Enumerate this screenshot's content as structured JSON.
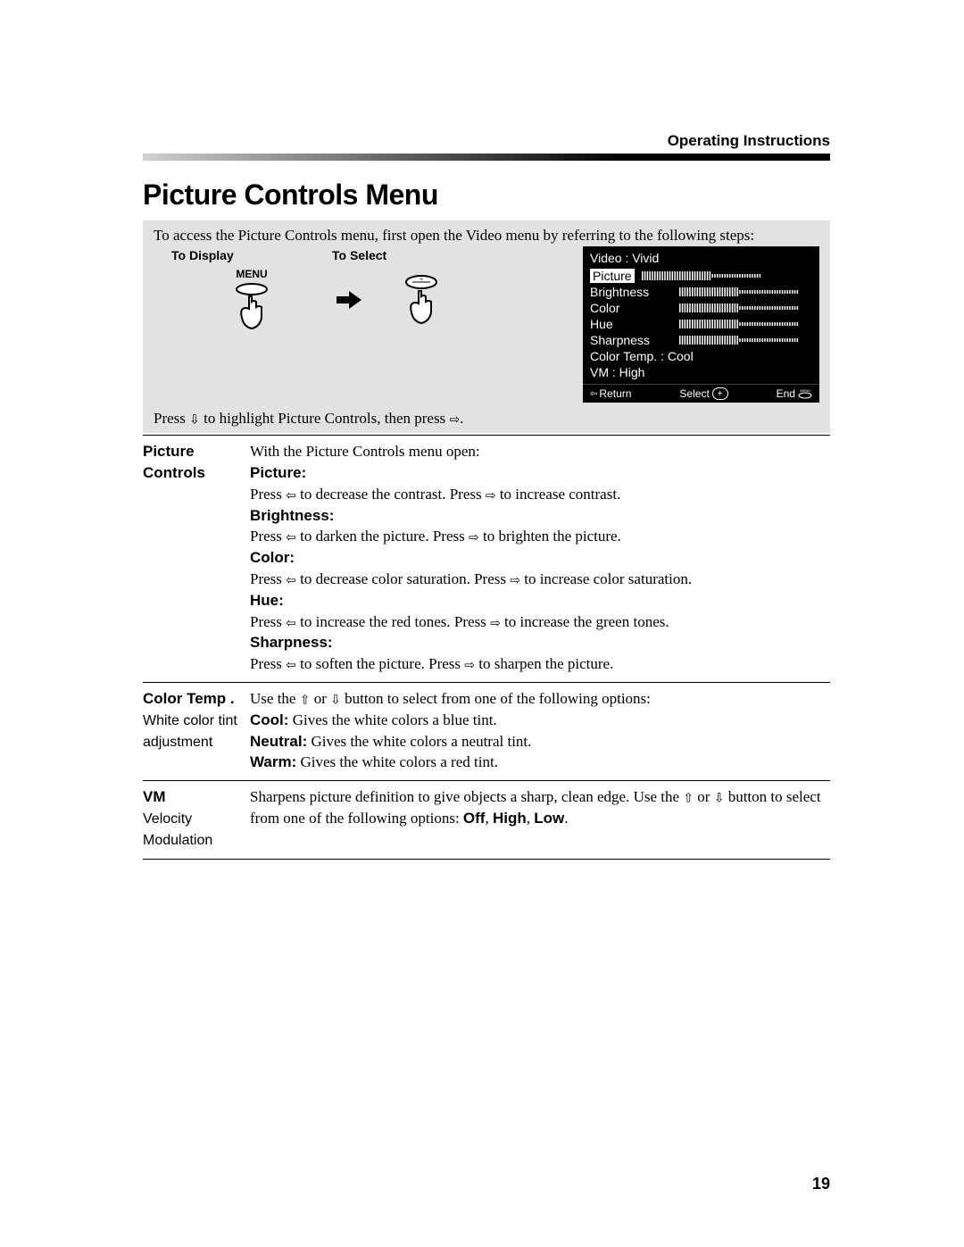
{
  "section_header": "Operating Instructions",
  "title": "Picture Controls Menu",
  "intro": "To access the Picture Controls menu, first open the Video menu by referring to the following steps:",
  "steps": {
    "display_label": "To Display",
    "select_label": "To Select",
    "menu_label": "MENU"
  },
  "osd": {
    "title_line": "Video  :  Vivid",
    "rows": [
      {
        "label": "Picture",
        "selected": true,
        "bar": 58
      },
      {
        "label": "Brightness",
        "bar": 50
      },
      {
        "label": "Color",
        "bar": 50
      },
      {
        "label": "Hue",
        "bar": 50
      },
      {
        "label": "Sharpness",
        "bar": 50
      }
    ],
    "color_temp_line": "Color Temp.  :  Cool",
    "vm_line": "VM  :  High",
    "footer_return": "Return",
    "footer_select": "Select",
    "footer_end": "End"
  },
  "press_line_pre": "Press ",
  "press_line_mid": " to highlight Picture Controls, then press ",
  "press_line_post": ".",
  "defs": [
    {
      "left_bold": "Picture Controls",
      "left_rest": "",
      "right_html": "With the Picture Controls menu open:\n<b>Picture:</b>\nPress ⇦ to decrease the contrast. Press ⇨ to increase contrast.\n<b>Brightness:</b>\nPress ⇦ to darken the picture. Press ⇨ to brighten the picture.\n<b>Color:</b>\nPress ⇦ to decrease color saturation. Press ⇨ to increase color saturation.\n<b>Hue:</b>\nPress ⇦ to increase the red tones. Press ⇨ to increase the green tones.\n<b>Sharpness:</b>\nPress ⇦ to soften the picture. Press ⇨ to sharpen the picture."
    },
    {
      "left_bold": "Color Temp .",
      "left_rest": "White color tint adjustment",
      "right_html": "Use the ⇧ or ⇩ button to select from one of the following options:\n<b>Cool:</b> Gives the white colors a blue tint.\n<b>Neutral:</b> Gives the white colors a neutral tint.\n<b>Warm:</b> Gives the white colors a red tint."
    },
    {
      "left_bold": "VM",
      "left_rest": "Velocity Modulation",
      "right_html": "Sharpens picture definition to give objects a sharp, clean edge. Use the ⇧ or ⇩ button to select from one of the following options: <b>Off</b>, <b>High</b>, <b>Low</b>."
    }
  ],
  "page_number": "19"
}
